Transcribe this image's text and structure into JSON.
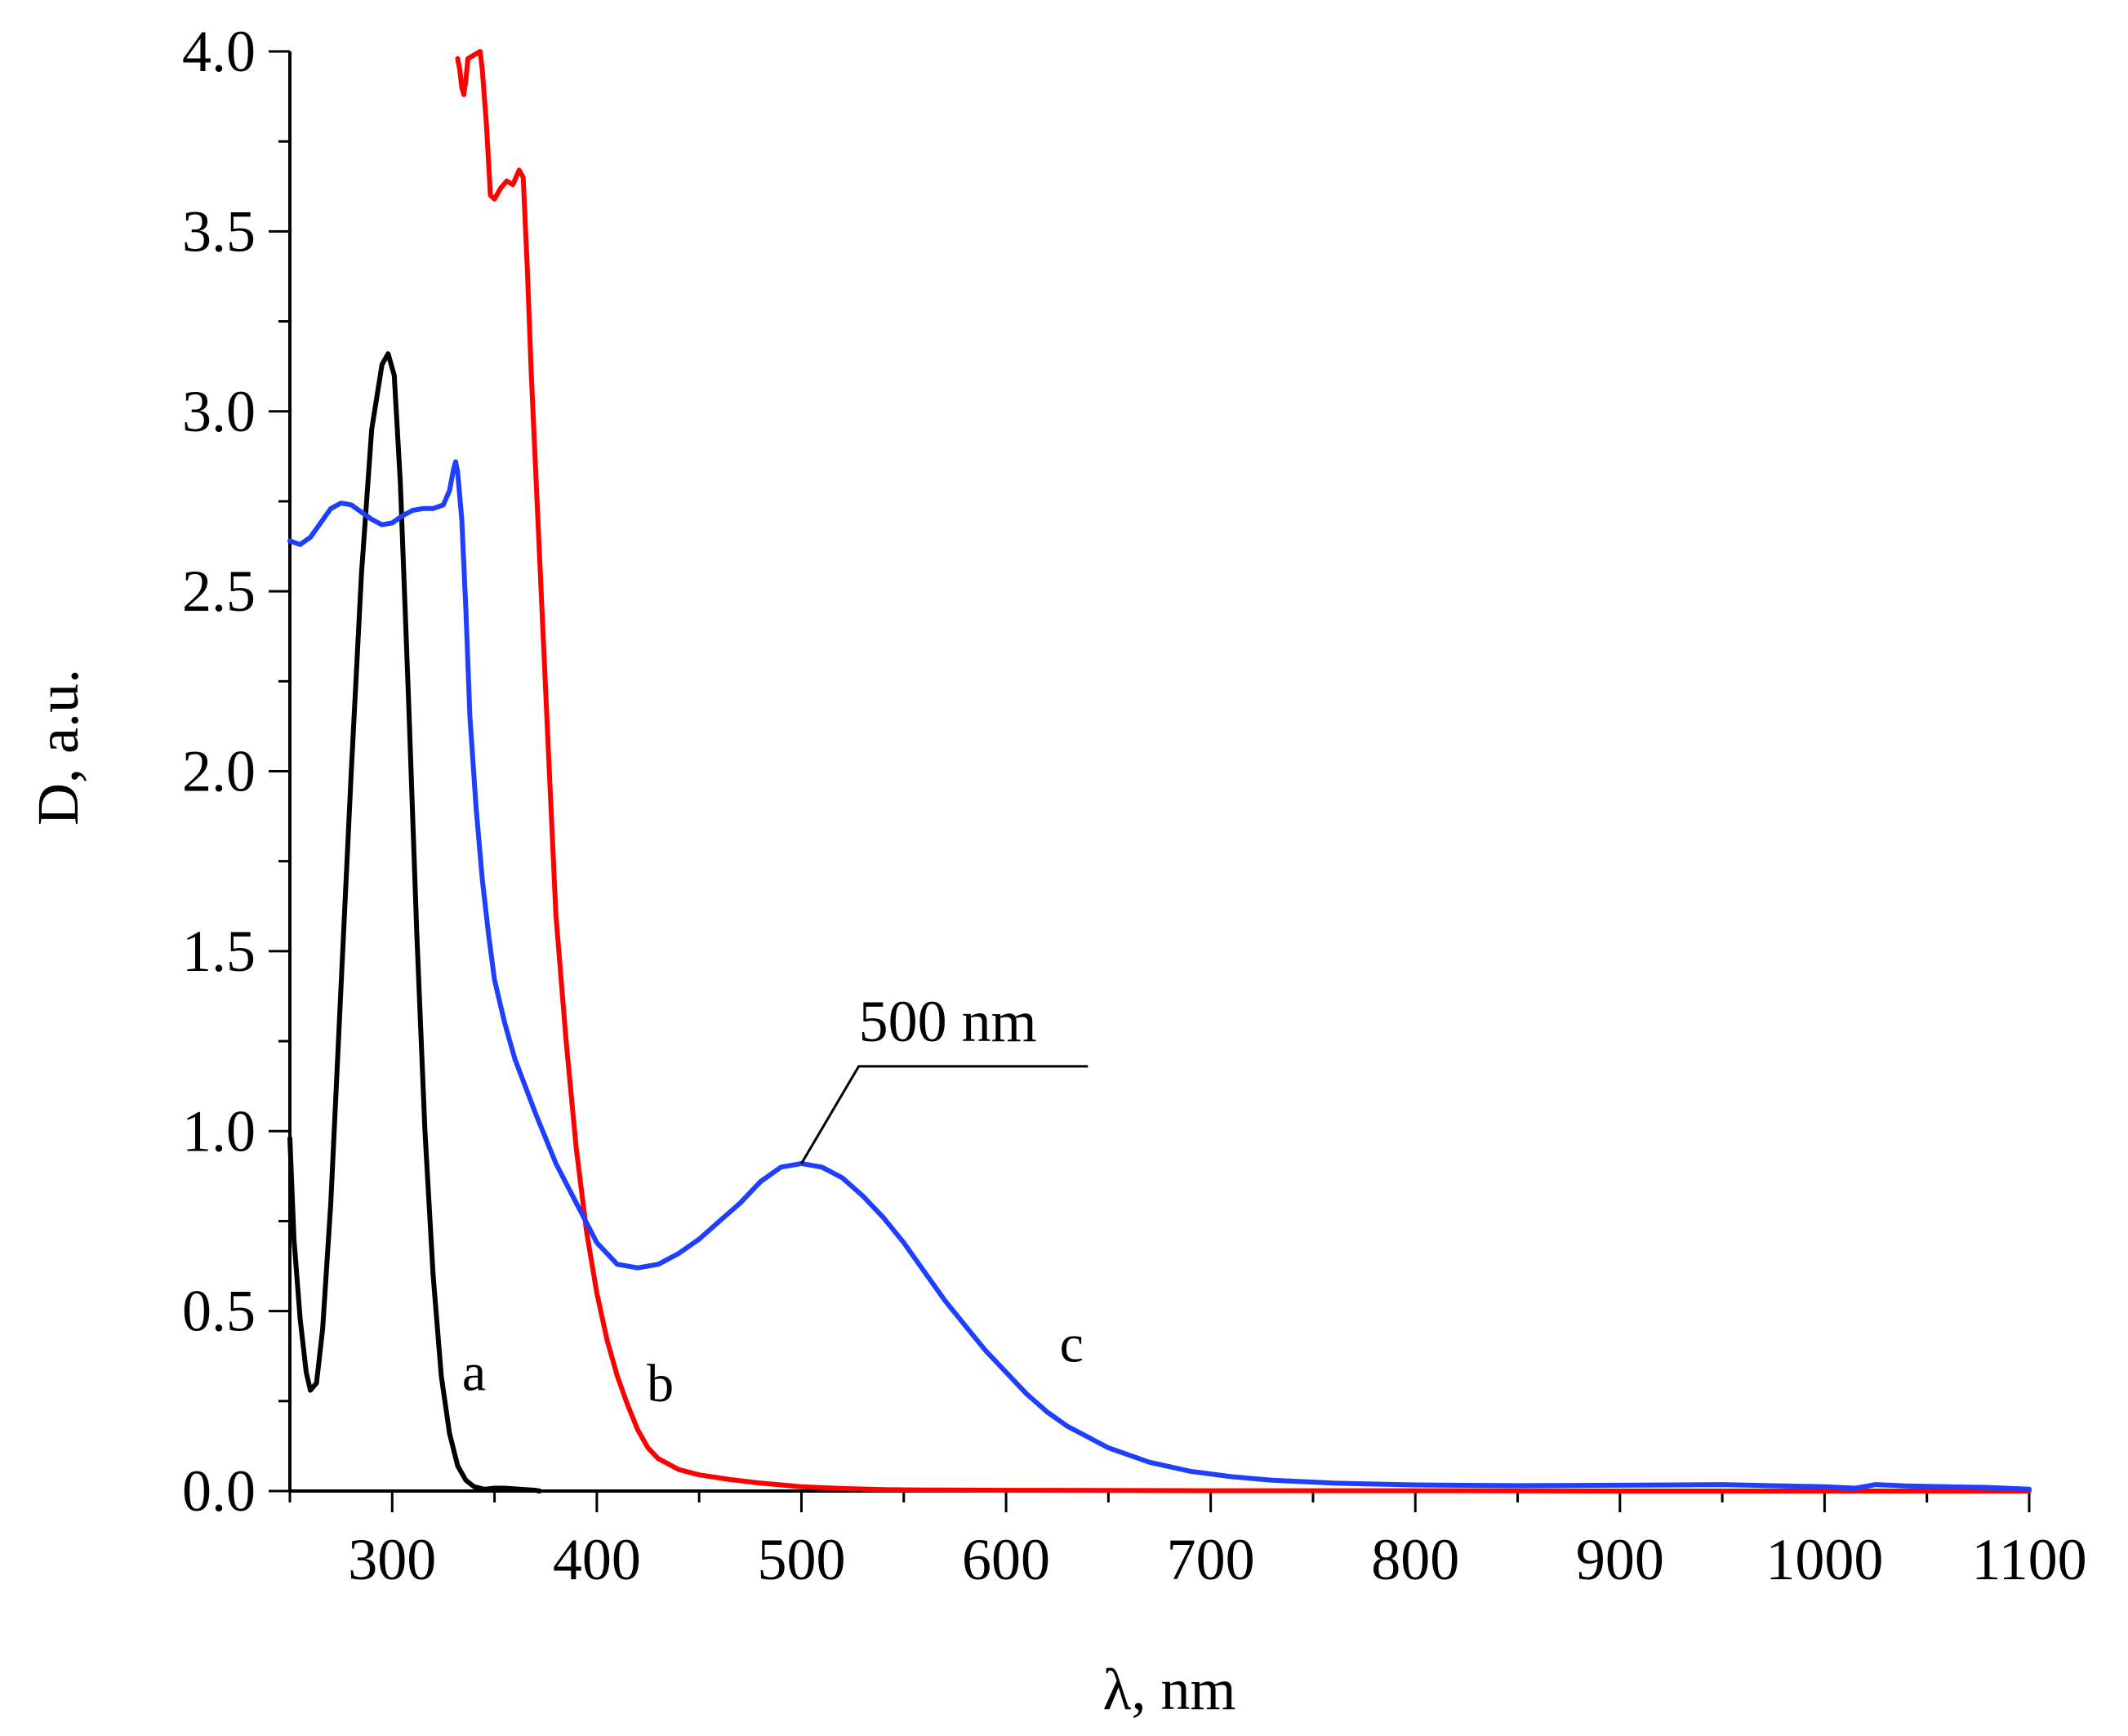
{
  "chart_data": {
    "type": "line",
    "title": "",
    "xlabel": "λ, nm",
    "ylabel": "D, a.u.",
    "xlim": [
      250,
      1100
    ],
    "ylim": [
      0,
      4.0
    ],
    "x_ticks": [
      300,
      400,
      500,
      600,
      700,
      800,
      900,
      1000,
      1100
    ],
    "x_tick_labels": [
      "300",
      "400",
      "500",
      "600",
      "700",
      "800",
      "900",
      "1000",
      "1100"
    ],
    "x_minor_step": 50,
    "y_ticks": [
      0,
      0.5,
      1.0,
      1.5,
      2.0,
      2.5,
      3.0,
      3.5,
      4.0
    ],
    "y_tick_labels": [
      "0.0",
      "0.5",
      "1.0",
      "1.5",
      "2.0",
      "2.5",
      "3.0",
      "3.5",
      "4.0"
    ],
    "y_minor_step": 0.25,
    "grid": false,
    "series": [
      {
        "name": "a",
        "color": "#000000",
        "points": [
          [
            250,
            0.98
          ],
          [
            252,
            0.7
          ],
          [
            255,
            0.48
          ],
          [
            258,
            0.33
          ],
          [
            260,
            0.28
          ],
          [
            263,
            0.3
          ],
          [
            266,
            0.45
          ],
          [
            270,
            0.8
          ],
          [
            275,
            1.4
          ],
          [
            280,
            2.0
          ],
          [
            285,
            2.55
          ],
          [
            290,
            2.95
          ],
          [
            295,
            3.13
          ],
          [
            298,
            3.16
          ],
          [
            301,
            3.1
          ],
          [
            304,
            2.8
          ],
          [
            308,
            2.2
          ],
          [
            312,
            1.55
          ],
          [
            316,
            1.0
          ],
          [
            320,
            0.6
          ],
          [
            324,
            0.32
          ],
          [
            328,
            0.16
          ],
          [
            332,
            0.07
          ],
          [
            336,
            0.03
          ],
          [
            340,
            0.012
          ],
          [
            345,
            0.005
          ],
          [
            350,
            0.008
          ],
          [
            355,
            0.008
          ],
          [
            360,
            0.006
          ],
          [
            365,
            0.004
          ],
          [
            370,
            0.002
          ],
          [
            372,
            0.0
          ]
        ]
      },
      {
        "name": "b",
        "color": "#ff0000",
        "points": [
          [
            332,
            3.98
          ],
          [
            333,
            3.95
          ],
          [
            334,
            3.9
          ],
          [
            335,
            3.88
          ],
          [
            336,
            3.92
          ],
          [
            337,
            3.98
          ],
          [
            343,
            4.0
          ],
          [
            344,
            3.95
          ],
          [
            346,
            3.8
          ],
          [
            348,
            3.6
          ],
          [
            350,
            3.59
          ],
          [
            353,
            3.62
          ],
          [
            356,
            3.64
          ],
          [
            359,
            3.63
          ],
          [
            362,
            3.67
          ],
          [
            364,
            3.65
          ],
          [
            366,
            3.4
          ],
          [
            368,
            3.1
          ],
          [
            372,
            2.6
          ],
          [
            376,
            2.1
          ],
          [
            380,
            1.6
          ],
          [
            385,
            1.25
          ],
          [
            390,
            0.95
          ],
          [
            395,
            0.72
          ],
          [
            400,
            0.55
          ],
          [
            405,
            0.42
          ],
          [
            410,
            0.32
          ],
          [
            415,
            0.24
          ],
          [
            420,
            0.17
          ],
          [
            425,
            0.12
          ],
          [
            430,
            0.09
          ],
          [
            440,
            0.06
          ],
          [
            450,
            0.045
          ],
          [
            465,
            0.032
          ],
          [
            480,
            0.022
          ],
          [
            500,
            0.012
          ],
          [
            520,
            0.007
          ],
          [
            540,
            0.004
          ],
          [
            560,
            0.003
          ],
          [
            600,
            0.002
          ],
          [
            700,
            0.001
          ],
          [
            800,
            0.001
          ],
          [
            900,
            0.0
          ],
          [
            1100,
            0.0
          ]
        ]
      },
      {
        "name": "c",
        "color": "#1f3fff",
        "points": [
          [
            250,
            2.64
          ],
          [
            255,
            2.63
          ],
          [
            260,
            2.65
          ],
          [
            265,
            2.69
          ],
          [
            270,
            2.73
          ],
          [
            275,
            2.745
          ],
          [
            280,
            2.74
          ],
          [
            285,
            2.72
          ],
          [
            290,
            2.7
          ],
          [
            295,
            2.685
          ],
          [
            300,
            2.69
          ],
          [
            305,
            2.71
          ],
          [
            310,
            2.725
          ],
          [
            315,
            2.73
          ],
          [
            320,
            2.73
          ],
          [
            325,
            2.74
          ],
          [
            328,
            2.78
          ],
          [
            330,
            2.84
          ],
          [
            331,
            2.86
          ],
          [
            332,
            2.83
          ],
          [
            334,
            2.7
          ],
          [
            336,
            2.45
          ],
          [
            338,
            2.15
          ],
          [
            341,
            1.9
          ],
          [
            344,
            1.7
          ],
          [
            347,
            1.55
          ],
          [
            350,
            1.42
          ],
          [
            355,
            1.3
          ],
          [
            360,
            1.2
          ],
          [
            370,
            1.05
          ],
          [
            380,
            0.91
          ],
          [
            390,
            0.8
          ],
          [
            400,
            0.69
          ],
          [
            410,
            0.63
          ],
          [
            420,
            0.62
          ],
          [
            430,
            0.63
          ],
          [
            440,
            0.66
          ],
          [
            450,
            0.7
          ],
          [
            460,
            0.75
          ],
          [
            470,
            0.8
          ],
          [
            480,
            0.86
          ],
          [
            490,
            0.9
          ],
          [
            500,
            0.91
          ],
          [
            510,
            0.9
          ],
          [
            520,
            0.87
          ],
          [
            530,
            0.82
          ],
          [
            540,
            0.76
          ],
          [
            550,
            0.69
          ],
          [
            560,
            0.61
          ],
          [
            570,
            0.53
          ],
          [
            580,
            0.46
          ],
          [
            590,
            0.39
          ],
          [
            600,
            0.33
          ],
          [
            610,
            0.27
          ],
          [
            620,
            0.22
          ],
          [
            630,
            0.18
          ],
          [
            640,
            0.15
          ],
          [
            650,
            0.12
          ],
          [
            670,
            0.08
          ],
          [
            690,
            0.055
          ],
          [
            710,
            0.04
          ],
          [
            730,
            0.03
          ],
          [
            760,
            0.022
          ],
          [
            800,
            0.017
          ],
          [
            850,
            0.015
          ],
          [
            900,
            0.016
          ],
          [
            950,
            0.018
          ],
          [
            980,
            0.014
          ],
          [
            1000,
            0.012
          ],
          [
            1015,
            0.008
          ],
          [
            1025,
            0.018
          ],
          [
            1040,
            0.014
          ],
          [
            1060,
            0.012
          ],
          [
            1080,
            0.01
          ],
          [
            1100,
            0.005
          ]
        ]
      }
    ],
    "curve_labels": [
      {
        "text": "a",
        "x": 340,
        "y": 0.28
      },
      {
        "text": "b",
        "x": 431,
        "y": 0.25
      },
      {
        "text": "c",
        "x": 632,
        "y": 0.36
      }
    ],
    "annotation": {
      "text": "500 nm",
      "point": [
        500,
        0.91
      ],
      "elbow": [
        528,
        1.18
      ],
      "line_end": [
        640,
        1.18
      ],
      "text_pos": [
        528,
        1.25
      ]
    }
  }
}
